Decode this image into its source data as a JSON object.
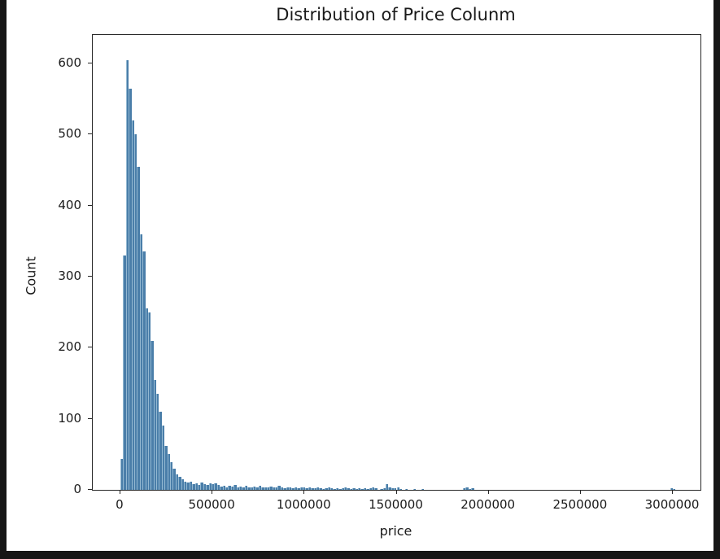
{
  "chart_data": {
    "type": "bar",
    "subtype": "histogram",
    "title": "Distribution of Price Colunm",
    "xlabel": "price",
    "ylabel": "Count",
    "legend": "none",
    "grid": false,
    "bar_color": "#4a7ea9",
    "bar_edge_color": "#93b8d2",
    "background_color": "#ffffff",
    "outer_frame_color": "#161616",
    "xlim": [
      -150000,
      3150000
    ],
    "ylim": [
      0,
      640
    ],
    "x_ticks": [
      0,
      500000,
      1000000,
      1500000,
      2000000,
      2500000,
      3000000
    ],
    "x_tick_labels": [
      "0",
      "500000",
      "1000000",
      "1500000",
      "2000000",
      "2500000",
      "3000000"
    ],
    "y_ticks": [
      0,
      100,
      200,
      300,
      400,
      500,
      600
    ],
    "y_tick_labels": [
      "0",
      "100",
      "200",
      "300",
      "400",
      "500",
      "600"
    ],
    "bin_start": 0,
    "bin_width": 15000,
    "counts": [
      44,
      330,
      605,
      565,
      520,
      500,
      455,
      360,
      335,
      255,
      250,
      210,
      155,
      135,
      110,
      90,
      62,
      50,
      39,
      30,
      22,
      18,
      15,
      12,
      10,
      12,
      8,
      9,
      7,
      10,
      8,
      7,
      9,
      8,
      9,
      7,
      5,
      6,
      4,
      6,
      5,
      7,
      4,
      5,
      3,
      6,
      4,
      3,
      5,
      4,
      6,
      3,
      4,
      3,
      5,
      4,
      3,
      6,
      3,
      2,
      4,
      3,
      2,
      3,
      2,
      3,
      4,
      2,
      3,
      2,
      2,
      3,
      2,
      1,
      2,
      3,
      2,
      1,
      2,
      1,
      2,
      3,
      2,
      1,
      2,
      1,
      2,
      1,
      2,
      1,
      2,
      3,
      2,
      0,
      1,
      2,
      8,
      3,
      2,
      2,
      3,
      1,
      0,
      1,
      0,
      0,
      1,
      0,
      0,
      1,
      0,
      0,
      0,
      0,
      0,
      0,
      0,
      0,
      0,
      0,
      0,
      0,
      0,
      0,
      2,
      3,
      1,
      2,
      0,
      0,
      0,
      0,
      0,
      0,
      0,
      0,
      0,
      0,
      0,
      0,
      0,
      0,
      0,
      0,
      0,
      0,
      0,
      0,
      0,
      0,
      0,
      0,
      0,
      0,
      0,
      0,
      0,
      0,
      0,
      0,
      0,
      0,
      0,
      0,
      0,
      0,
      0,
      0,
      0,
      0,
      0,
      0,
      0,
      0,
      0,
      0,
      0,
      0,
      0,
      0,
      0,
      0,
      0,
      0,
      0,
      0,
      0,
      0,
      0,
      0,
      0,
      0,
      0,
      0,
      0,
      0,
      0,
      0,
      0,
      2,
      1,
      0,
      0,
      0
    ]
  }
}
